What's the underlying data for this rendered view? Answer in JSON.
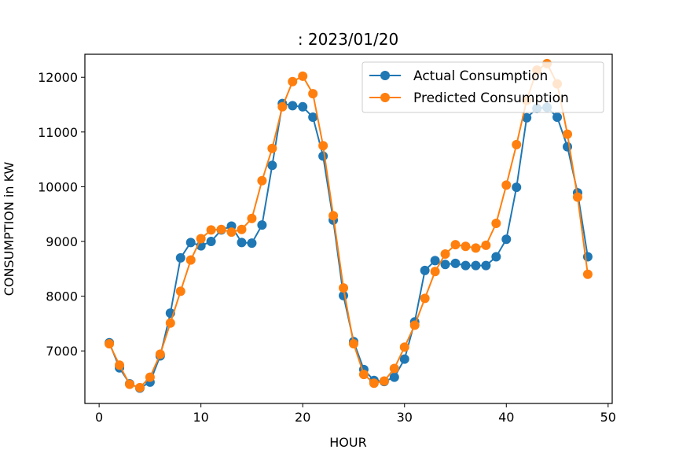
{
  "chart_data": {
    "type": "line",
    "title": ": 2023/01/20",
    "xlabel": "HOUR",
    "ylabel": "CONSUMPTION in KW",
    "xlim": [
      -1.4,
      50.4
    ],
    "ylim": [
      6040,
      12420
    ],
    "xticks": [
      0,
      10,
      20,
      30,
      40,
      50
    ],
    "yticks": [
      7000,
      8000,
      9000,
      10000,
      11000,
      12000
    ],
    "grid": false,
    "legend_position": "upper right",
    "x": [
      1,
      2,
      3,
      4,
      5,
      6,
      7,
      8,
      9,
      10,
      11,
      12,
      13,
      14,
      15,
      16,
      17,
      18,
      19,
      20,
      21,
      22,
      23,
      24,
      25,
      26,
      27,
      28,
      29,
      30,
      31,
      32,
      33,
      34,
      35,
      36,
      37,
      38,
      39,
      40,
      41,
      42,
      43,
      44,
      45,
      46,
      47,
      48
    ],
    "series": [
      {
        "name": "Actual Consumption",
        "color": "#1f77b4",
        "values": [
          7150,
          6690,
          6400,
          6320,
          6430,
          6910,
          7690,
          8700,
          8980,
          8920,
          9000,
          9210,
          9280,
          8980,
          8970,
          9300,
          10390,
          11520,
          11480,
          11460,
          11270,
          10560,
          9390,
          8010,
          7170,
          6660,
          6460,
          6440,
          6520,
          6850,
          7530,
          8470,
          8650,
          8580,
          8600,
          8560,
          8560,
          8560,
          8720,
          9040,
          9990,
          11260,
          11430,
          11450,
          11270,
          10730,
          9890,
          8720
        ]
      },
      {
        "name": "Predicted Consumption",
        "color": "#ff7f0e",
        "values": [
          7130,
          6740,
          6390,
          6330,
          6520,
          6940,
          7510,
          8090,
          8660,
          9050,
          9210,
          9220,
          9170,
          9220,
          9420,
          10110,
          10700,
          11460,
          11920,
          12020,
          11700,
          10750,
          9470,
          8150,
          7130,
          6570,
          6410,
          6450,
          6680,
          7070,
          7470,
          7960,
          8450,
          8770,
          8940,
          8910,
          8880,
          8930,
          9330,
          10030,
          10770,
          11580,
          12130,
          12250,
          11880,
          10960,
          9810,
          8400
        ]
      }
    ]
  }
}
